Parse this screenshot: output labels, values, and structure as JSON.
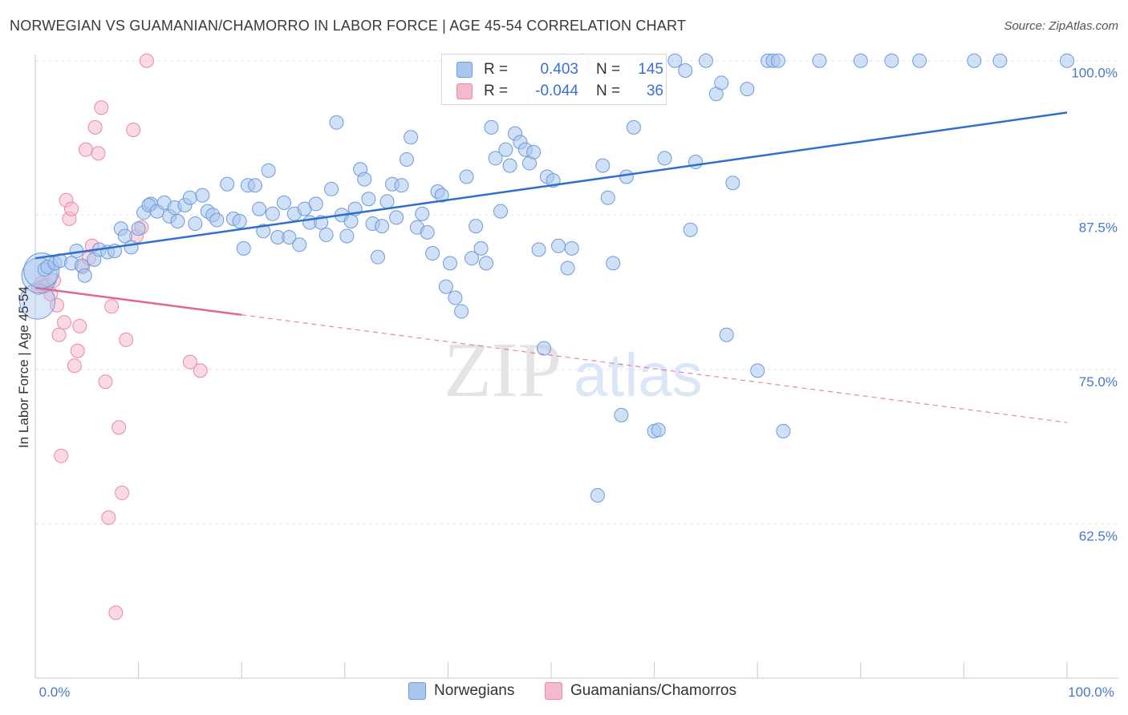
{
  "title": "NORWEGIAN VS GUAMANIAN/CHAMORRO IN LABOR FORCE | AGE 45-54 CORRELATION CHART",
  "source": "Source: ZipAtlas.com",
  "watermark": {
    "zip": "ZIP",
    "atlas": "atlas"
  },
  "colors": {
    "blue_fill": "#a9c6ee",
    "blue_stroke": "#6f9bd8",
    "blue_line": "#2f6fcc",
    "pink_fill": "#f5b9cc",
    "pink_stroke": "#e88aa8",
    "pink_line": "#e06890",
    "tick_label": "#4a78c8",
    "grid": "#e3e3e3"
  },
  "legend": {
    "rows": [
      {
        "r_label": "R =",
        "r_value": "0.403",
        "n_label": "N =",
        "n_value": "145",
        "color": "#a9c6ee"
      },
      {
        "r_label": "R =",
        "r_value": "-0.044",
        "n_label": "N =",
        "n_value": "36",
        "color": "#f5b9cc"
      }
    ]
  },
  "bottom_legend": [
    {
      "label": "Norwegians",
      "color": "#a9c6ee"
    },
    {
      "label": "Guamanians/Chamorros",
      "color": "#f5b9cc"
    }
  ],
  "chart_data": {
    "type": "scatter",
    "title": "NORWEGIAN VS GUAMANIAN/CHAMORRO IN LABOR FORCE | AGE 45-54 CORRELATION CHART",
    "xlabel": "",
    "ylabel": "In Labor Force | Age 45-54",
    "xlim": [
      0,
      100
    ],
    "ylim": [
      50,
      100.5
    ],
    "x_tick_labels": [
      "0.0%",
      "100.0%"
    ],
    "y_ticks": [
      62.5,
      75.0,
      87.5,
      100.0
    ],
    "y_tick_labels": [
      "62.5%",
      "75.0%",
      "87.5%",
      "100.0%"
    ],
    "grid": true,
    "series": [
      {
        "name": "Norwegians",
        "color": "#a9c6ee",
        "trend": {
          "x": [
            0,
            100
          ],
          "y": [
            84.0,
            95.8
          ],
          "dashed_from": null
        },
        "points": [
          [
            0.2,
            80.5,
            1
          ],
          [
            0.4,
            82.6,
            1
          ],
          [
            0.6,
            83.0,
            1
          ],
          [
            0.9,
            83.1,
            0
          ],
          [
            1.2,
            83.3,
            0
          ],
          [
            1.9,
            83.6,
            0
          ],
          [
            2.4,
            83.8,
            0
          ],
          [
            3.5,
            83.6,
            0
          ],
          [
            4.0,
            84.6,
            0
          ],
          [
            4.5,
            83.4,
            0
          ],
          [
            4.8,
            82.6,
            0
          ],
          [
            5.7,
            83.9,
            0
          ],
          [
            6.2,
            84.7,
            0
          ],
          [
            7.0,
            84.5,
            0
          ],
          [
            7.7,
            84.6,
            0
          ],
          [
            8.3,
            86.4,
            0
          ],
          [
            8.7,
            85.8,
            0
          ],
          [
            9.3,
            84.9,
            0
          ],
          [
            10.0,
            86.4,
            0
          ],
          [
            10.5,
            87.7,
            0
          ],
          [
            11.2,
            88.4,
            0
          ],
          [
            11.0,
            88.3,
            0
          ],
          [
            11.8,
            87.8,
            0
          ],
          [
            12.5,
            88.5,
            0
          ],
          [
            13.0,
            87.4,
            0
          ],
          [
            13.5,
            88.1,
            0
          ],
          [
            13.8,
            87.0,
            0
          ],
          [
            14.5,
            88.3,
            0
          ],
          [
            15.0,
            88.9,
            0
          ],
          [
            15.5,
            86.8,
            0
          ],
          [
            16.2,
            89.1,
            0
          ],
          [
            16.7,
            87.8,
            0
          ],
          [
            17.2,
            87.5,
            0
          ],
          [
            17.6,
            87.1,
            0
          ],
          [
            18.6,
            90.0,
            0
          ],
          [
            19.2,
            87.2,
            0
          ],
          [
            19.8,
            87.0,
            0
          ],
          [
            20.2,
            84.8,
            0
          ],
          [
            20.6,
            89.9,
            0
          ],
          [
            21.3,
            89.9,
            0
          ],
          [
            21.7,
            88.0,
            0
          ],
          [
            22.1,
            86.2,
            0
          ],
          [
            22.6,
            91.1,
            0
          ],
          [
            23.0,
            87.6,
            0
          ],
          [
            23.5,
            85.7,
            0
          ],
          [
            24.1,
            88.5,
            0
          ],
          [
            24.6,
            85.7,
            0
          ],
          [
            25.1,
            87.6,
            0
          ],
          [
            25.6,
            85.1,
            0
          ],
          [
            26.1,
            88.0,
            0
          ],
          [
            26.6,
            86.9,
            0
          ],
          [
            27.2,
            88.4,
            0
          ],
          [
            27.7,
            86.9,
            0
          ],
          [
            28.2,
            85.9,
            0
          ],
          [
            28.7,
            89.6,
            0
          ],
          [
            29.2,
            95.0,
            0
          ],
          [
            29.7,
            87.5,
            0
          ],
          [
            30.2,
            85.8,
            0
          ],
          [
            30.6,
            87.0,
            0
          ],
          [
            31.0,
            88.0,
            0
          ],
          [
            31.5,
            91.2,
            0
          ],
          [
            31.9,
            90.4,
            0
          ],
          [
            32.3,
            88.8,
            0
          ],
          [
            32.7,
            86.8,
            0
          ],
          [
            33.2,
            84.1,
            0
          ],
          [
            33.6,
            86.6,
            0
          ],
          [
            34.1,
            88.6,
            0
          ],
          [
            34.6,
            90.0,
            0
          ],
          [
            35.0,
            87.3,
            0
          ],
          [
            35.5,
            89.9,
            0
          ],
          [
            36.0,
            92.0,
            0
          ],
          [
            36.4,
            93.8,
            0
          ],
          [
            37.0,
            86.5,
            0
          ],
          [
            37.5,
            87.6,
            0
          ],
          [
            38.0,
            86.1,
            0
          ],
          [
            38.5,
            84.4,
            0
          ],
          [
            39.0,
            89.4,
            0
          ],
          [
            39.4,
            89.1,
            0
          ],
          [
            39.8,
            81.7,
            0
          ],
          [
            40.2,
            83.6,
            0
          ],
          [
            40.7,
            80.8,
            0
          ],
          [
            41.3,
            79.7,
            0
          ],
          [
            41.8,
            90.6,
            0
          ],
          [
            42.3,
            84.0,
            0
          ],
          [
            42.7,
            86.6,
            0
          ],
          [
            43.2,
            84.8,
            0
          ],
          [
            43.7,
            83.6,
            0
          ],
          [
            44.2,
            94.6,
            0
          ],
          [
            44.6,
            92.1,
            0
          ],
          [
            45.1,
            87.8,
            0
          ],
          [
            45.6,
            92.8,
            0
          ],
          [
            46.0,
            91.5,
            0
          ],
          [
            46.5,
            94.1,
            0
          ],
          [
            47.0,
            93.4,
            0
          ],
          [
            47.5,
            92.8,
            0
          ],
          [
            47.9,
            91.7,
            0
          ],
          [
            48.3,
            92.6,
            0
          ],
          [
            48.8,
            84.7,
            0
          ],
          [
            49.3,
            76.7,
            0
          ],
          [
            49.6,
            90.6,
            0
          ],
          [
            50.2,
            90.3,
            0
          ],
          [
            50.7,
            85.0,
            0
          ],
          [
            51.1,
            100.0,
            0
          ],
          [
            51.6,
            83.2,
            0
          ],
          [
            52.0,
            84.8,
            0
          ],
          [
            53.0,
            100.0,
            0
          ],
          [
            54.0,
            99.4,
            0
          ],
          [
            54.5,
            64.8,
            0
          ],
          [
            55.0,
            91.5,
            0
          ],
          [
            55.5,
            88.9,
            0
          ],
          [
            56.0,
            83.6,
            0
          ],
          [
            56.8,
            71.3,
            0
          ],
          [
            57.3,
            90.6,
            0
          ],
          [
            58.0,
            94.6,
            0
          ],
          [
            59.0,
            100.0,
            0
          ],
          [
            60.0,
            70.0,
            0
          ],
          [
            60.4,
            70.1,
            0
          ],
          [
            61.0,
            92.1,
            0
          ],
          [
            62.0,
            100.0,
            0
          ],
          [
            63.0,
            99.2,
            0
          ],
          [
            63.5,
            86.3,
            0
          ],
          [
            64.0,
            91.8,
            0
          ],
          [
            65.0,
            100.0,
            0
          ],
          [
            66.0,
            97.3,
            0
          ],
          [
            66.5,
            98.2,
            0
          ],
          [
            67.0,
            77.8,
            0
          ],
          [
            67.6,
            90.1,
            0
          ],
          [
            69.0,
            97.7,
            0
          ],
          [
            70.0,
            74.9,
            0
          ],
          [
            71.0,
            100.0,
            0
          ],
          [
            71.5,
            100.0,
            0
          ],
          [
            72.0,
            100.0,
            0
          ],
          [
            72.5,
            70.0,
            0
          ],
          [
            76.0,
            100.0,
            0
          ],
          [
            80.0,
            100.0,
            0
          ],
          [
            83.0,
            100.0,
            0
          ],
          [
            85.7,
            100.0,
            0
          ],
          [
            91.0,
            100.0,
            0
          ],
          [
            93.5,
            100.0,
            0
          ],
          [
            100.0,
            100.0,
            0
          ]
        ]
      },
      {
        "name": "Guamanians/Chamorros",
        "color": "#f5b9cc",
        "trend": {
          "x": [
            0,
            100
          ],
          "y": [
            81.6,
            70.7
          ],
          "solid_until_x": 20
        },
        "points": [
          [
            0.3,
            81.6,
            0
          ],
          [
            0.6,
            82.0,
            0
          ],
          [
            0.8,
            81.7,
            0
          ],
          [
            1.1,
            81.8,
            0
          ],
          [
            1.5,
            81.1,
            0
          ],
          [
            1.8,
            82.2,
            0
          ],
          [
            2.1,
            80.2,
            0
          ],
          [
            2.3,
            77.8,
            0
          ],
          [
            2.5,
            68.0,
            0
          ],
          [
            2.8,
            78.8,
            0
          ],
          [
            3.0,
            88.7,
            0
          ],
          [
            3.3,
            87.2,
            0
          ],
          [
            3.5,
            88.0,
            0
          ],
          [
            3.8,
            75.3,
            0
          ],
          [
            4.1,
            76.5,
            0
          ],
          [
            4.3,
            78.5,
            0
          ],
          [
            4.6,
            83.3,
            0
          ],
          [
            4.9,
            92.8,
            0
          ],
          [
            5.2,
            84.0,
            0
          ],
          [
            5.5,
            85.0,
            0
          ],
          [
            5.8,
            94.6,
            0
          ],
          [
            6.1,
            92.5,
            0
          ],
          [
            6.4,
            96.2,
            0
          ],
          [
            6.8,
            74.0,
            0
          ],
          [
            7.1,
            63.0,
            0
          ],
          [
            7.4,
            80.1,
            0
          ],
          [
            7.8,
            55.3,
            0
          ],
          [
            8.1,
            70.3,
            0
          ],
          [
            8.4,
            65.0,
            0
          ],
          [
            8.8,
            77.4,
            0
          ],
          [
            9.5,
            94.4,
            0
          ],
          [
            9.8,
            85.8,
            0
          ],
          [
            10.3,
            86.5,
            0
          ],
          [
            10.8,
            100.0,
            0
          ],
          [
            15.0,
            75.6,
            0
          ],
          [
            16.0,
            74.9,
            0
          ]
        ]
      }
    ]
  }
}
